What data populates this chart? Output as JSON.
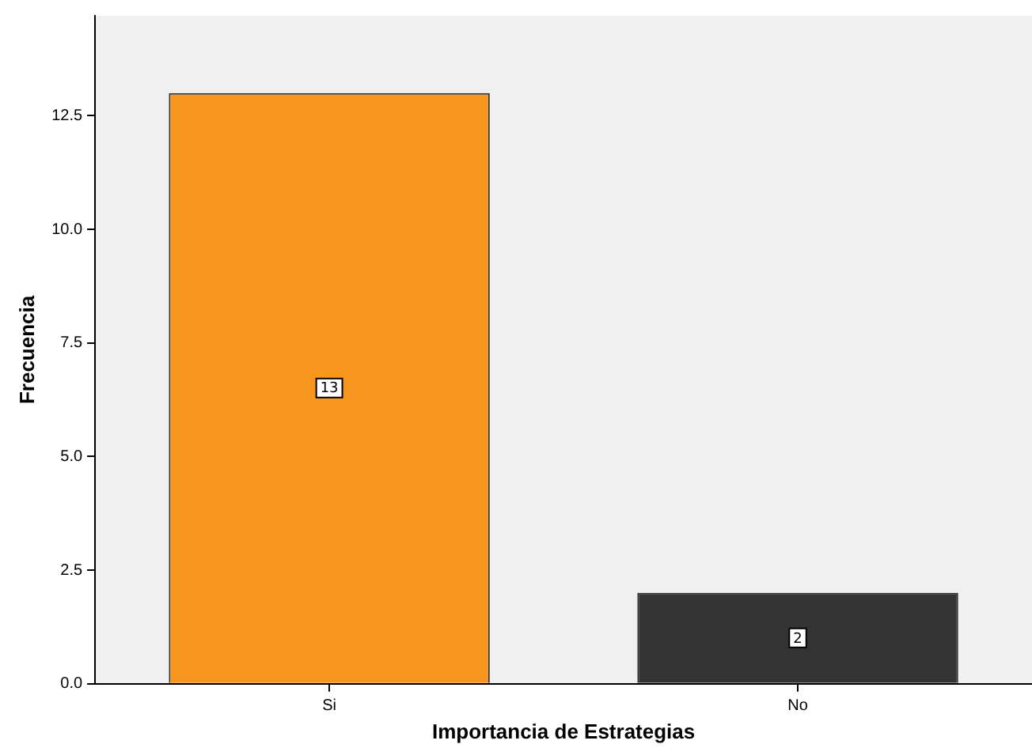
{
  "chart_data": {
    "type": "bar",
    "xlabel": "Importancia de Estrategias",
    "ylabel": "Frecuencia",
    "categories": [
      "Si",
      "No"
    ],
    "values": [
      13,
      2
    ],
    "colors": [
      "#f7961e",
      "#333333"
    ],
    "ylim": [
      0,
      14.7
    ],
    "yticks": [
      {
        "value": 0,
        "label": "0.0"
      },
      {
        "value": 2.5,
        "label": "2.5"
      },
      {
        "value": 5,
        "label": "5.0"
      },
      {
        "value": 7.5,
        "label": "7.5"
      },
      {
        "value": 10,
        "label": "10.0"
      },
      {
        "value": 12.5,
        "label": "12.5"
      }
    ],
    "grid": false,
    "legend": false,
    "data_labels": true
  }
}
